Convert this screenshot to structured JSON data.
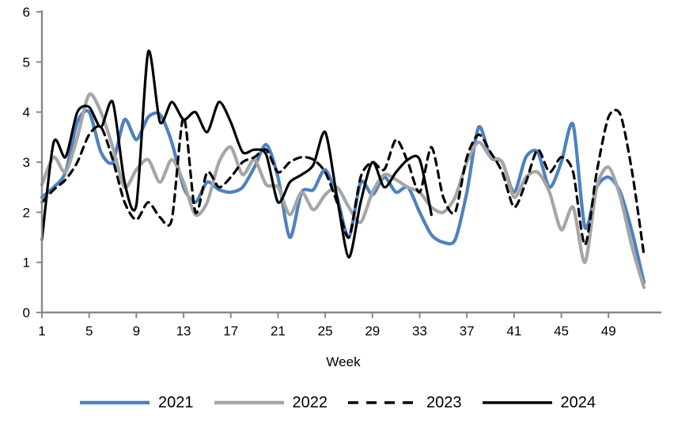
{
  "page": {
    "background": "#ffffff",
    "axis_color": "#898989",
    "text_color": "#000000"
  },
  "chart_data": {
    "type": "line",
    "title": "",
    "xlabel": "Week",
    "ylabel": "",
    "xlim": [
      1,
      52
    ],
    "ylim": [
      0,
      6
    ],
    "x_ticks": [
      1,
      5,
      9,
      13,
      17,
      21,
      25,
      29,
      33,
      37,
      41,
      45,
      49
    ],
    "y_ticks": [
      0,
      1,
      2,
      3,
      4,
      5,
      6
    ],
    "grid": false,
    "legend_position": "bottom",
    "x_start_week": 1,
    "series": [
      {
        "name": "2021",
        "color": "#4F81BD",
        "style": "solid",
        "width": 4.2,
        "values": [
          2.3,
          2.5,
          2.8,
          3.8,
          4.0,
          3.2,
          3.0,
          3.85,
          3.45,
          3.9,
          3.95,
          3.4,
          2.5,
          2.2,
          2.6,
          2.45,
          2.4,
          2.5,
          2.9,
          3.35,
          2.7,
          1.5,
          2.4,
          2.45,
          2.85,
          2.3,
          1.5,
          2.6,
          2.35,
          2.7,
          2.4,
          2.5,
          2.0,
          1.55,
          1.4,
          1.45,
          2.4,
          3.7,
          3.1,
          3.0,
          2.4,
          3.1,
          3.2,
          2.5,
          3.0,
          3.75,
          1.7,
          2.5,
          2.7,
          2.4,
          1.6,
          0.6
        ]
      },
      {
        "name": "2022",
        "color": "#A6A6A6",
        "style": "solid",
        "width": 4.2,
        "values": [
          2.55,
          3.1,
          2.8,
          3.5,
          4.35,
          4.0,
          3.3,
          2.5,
          2.85,
          3.05,
          2.6,
          3.05,
          2.6,
          1.95,
          2.2,
          3.0,
          3.3,
          2.75,
          3.05,
          2.55,
          2.5,
          1.95,
          2.4,
          2.05,
          2.35,
          2.5,
          2.1,
          1.8,
          2.4,
          2.75,
          2.65,
          2.5,
          2.4,
          2.1,
          2.0,
          2.3,
          3.0,
          3.4,
          3.1,
          3.0,
          2.3,
          2.7,
          2.8,
          2.4,
          1.65,
          2.1,
          1.0,
          2.5,
          2.9,
          2.3,
          1.3,
          0.5
        ]
      },
      {
        "name": "2023",
        "color": "#000000",
        "style": "dashed",
        "width": 3.2,
        "values": [
          2.2,
          2.45,
          2.65,
          3.0,
          3.55,
          3.7,
          3.05,
          2.2,
          1.85,
          2.2,
          1.9,
          1.85,
          3.9,
          2.0,
          2.8,
          2.5,
          2.7,
          3.0,
          3.1,
          3.25,
          2.8,
          3.0,
          3.1,
          3.05,
          2.8,
          2.2,
          1.5,
          2.7,
          3.0,
          2.85,
          3.45,
          3.0,
          2.4,
          3.3,
          2.3,
          2.0,
          3.1,
          3.55,
          3.2,
          2.8,
          2.1,
          2.6,
          3.25,
          2.8,
          3.1,
          2.8,
          1.35,
          2.8,
          3.9,
          3.95,
          2.8,
          1.15
        ]
      },
      {
        "name": "2024",
        "color": "#000000",
        "style": "solid",
        "width": 3.2,
        "values": [
          1.45,
          3.4,
          3.1,
          4.0,
          4.1,
          3.7,
          4.2,
          2.6,
          2.15,
          5.2,
          3.8,
          4.2,
          3.85,
          4.0,
          3.6,
          4.2,
          3.8,
          3.2,
          3.25,
          3.15,
          2.2,
          2.6,
          2.75,
          2.95,
          3.6,
          2.3,
          1.1,
          2.2,
          3.0,
          2.5,
          2.8,
          3.05,
          3.05,
          1.95
        ]
      }
    ]
  }
}
